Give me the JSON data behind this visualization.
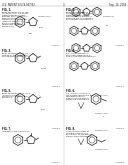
{
  "bg_color": "#f0f0f0",
  "header_left": "U.S. PATENT 8,574,947 B2",
  "header_right": "Sep. 14, 2009",
  "page_num": "3",
  "sections": [
    {
      "col": 0,
      "fig": "FIG. 1",
      "bold_text": "BRIEF DESCRIPTION OF THE DRAWINGS",
      "caption": "FIG. 1 is a brief standardized description provides a process for the preparation of a stereoisomer of Example 1 (1-amino,3-substituted phenylcyclopentane-carboxylate comp'd of Example 1a)",
      "struct": "benzene_cyclopentane_ester",
      "struct_note": "Compound 1a"
    },
    {
      "col": 1,
      "fig": "FIG. 2",
      "bold_text": "BRIEF DESCRIPTION OF DRAWINGS",
      "caption": "FIG. 2 is a brief standardized description that describes a process for preparing the stereoisomers of compounds of Example 1",
      "struct": "simple_benzene_chain",
      "struct_note": "Compound 1"
    },
    {
      "col": 0,
      "fig": "FIG. 3",
      "bold_text": "BRIEF DESCRIPTION OF FIG. 3",
      "caption": "Method for the preparation of compound of Example 2",
      "struct": "benzene_cyclopentane_2",
      "struct_note": ""
    },
    {
      "col": 1,
      "fig": "FIG. 4",
      "bold_text": "",
      "caption": "FIG. 4 is an alternative description mapping to a single compound of Example 2",
      "struct": "simple_benzene_2",
      "struct_note": ""
    },
    {
      "col": 0,
      "fig": "FIG. 5",
      "bold_text": "BRIEF DESCRIPTION OF FIG. 5",
      "caption": "The synthesis of a stereoisomer compound of Example 3",
      "struct": "benzene_cyclopentane_3",
      "struct_note": ""
    },
    {
      "col": 1,
      "fig": "FIG. 6",
      "bold_text": "FIG. 6 is an illustration of the process described in the specification for the preparation of a specific compound of Example 3",
      "caption": "",
      "struct": "complex_two_row",
      "struct_note": "Compound 6a\nCompound 6b"
    },
    {
      "col": 0,
      "fig": "FIG. 7",
      "bold_text": "",
      "caption": "Adapted for use in pharmacy",
      "struct": "benzene_cyclopentane_4",
      "struct_note": ""
    },
    {
      "col": 1,
      "fig": "FIG. 8",
      "bold_text": "",
      "caption": "Comprising the steps of selecting a substituted phenylester for the desired stereo comp'd of Example 4",
      "struct": "complex_two_row_2",
      "struct_note": "Compound 8a\nCompound 8b"
    }
  ]
}
